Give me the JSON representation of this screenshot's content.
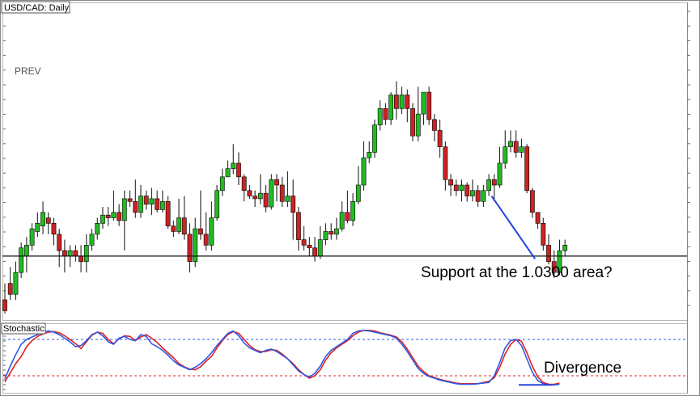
{
  "window": {
    "symbol_title": "USD/CAD: Daily",
    "prev_label": "PREV",
    "indicator_title": "Stochastic"
  },
  "annotations": {
    "support_text": "Support at the 1.0300 area?",
    "divergence_text": "Divergence"
  },
  "colors": {
    "bull": "#22bb22",
    "bear": "#cc2222",
    "wick": "#111111",
    "trendline": "#2244dd",
    "support_line": "#111111",
    "stoch_main": "#2b57e8",
    "stoch_signal": "#e02020",
    "level_upper": "#2b57e8",
    "level_lower": "#e02020",
    "divergence_line": "#2244dd"
  },
  "chart_data": [
    {
      "type": "candlestick",
      "title": "USD/CAD: Daily",
      "ylim": [
        0,
        100
      ],
      "support_level": 24,
      "trendline": [
        [
          89.5,
          46
        ],
        [
          97.5,
          23
        ]
      ],
      "candles": [
        [
          8,
          4,
          14,
          3
        ],
        [
          14,
          10,
          20,
          8
        ],
        [
          10,
          18,
          22,
          8
        ],
        [
          18,
          27,
          29,
          16
        ],
        [
          24,
          28,
          31,
          18
        ],
        [
          28,
          34,
          36,
          26
        ],
        [
          33,
          36,
          40,
          31
        ],
        [
          35,
          40,
          44,
          32
        ],
        [
          38,
          36,
          40,
          32
        ],
        [
          36,
          32,
          38,
          28
        ],
        [
          32,
          26,
          34,
          20
        ],
        [
          26,
          24,
          30,
          18
        ],
        [
          24,
          26,
          28,
          20
        ],
        [
          26,
          24,
          28,
          22
        ],
        [
          24,
          22,
          28,
          18
        ],
        [
          22,
          28,
          32,
          18
        ],
        [
          28,
          32,
          34,
          26
        ],
        [
          32,
          36,
          38,
          30
        ],
        [
          36,
          39,
          42,
          34
        ],
        [
          39,
          38,
          42,
          35
        ],
        [
          38,
          40,
          48,
          37
        ],
        [
          40,
          37,
          43,
          35
        ],
        [
          37,
          45,
          48,
          26
        ],
        [
          45,
          44,
          48,
          42
        ],
        [
          44,
          40,
          52,
          38
        ],
        [
          40,
          46,
          50,
          38
        ],
        [
          46,
          43,
          48,
          41
        ],
        [
          43,
          45,
          49,
          39
        ],
        [
          45,
          41,
          48,
          40
        ],
        [
          41,
          44,
          48,
          40
        ],
        [
          44,
          35,
          46,
          34
        ],
        [
          35,
          33,
          37,
          31
        ],
        [
          33,
          38,
          45,
          32
        ],
        [
          38,
          32,
          46,
          30
        ],
        [
          32,
          22,
          36,
          18
        ],
        [
          22,
          34,
          38,
          20
        ],
        [
          34,
          32,
          48,
          30
        ],
        [
          32,
          28,
          40,
          26
        ],
        [
          28,
          38,
          44,
          26
        ],
        [
          38,
          48,
          50,
          37
        ],
        [
          48,
          53,
          56,
          46
        ],
        [
          53,
          56,
          59,
          53
        ],
        [
          56,
          58,
          65,
          54
        ],
        [
          58,
          53,
          62,
          50
        ],
        [
          53,
          48,
          54,
          44
        ],
        [
          48,
          46,
          50,
          45
        ],
        [
          46,
          45,
          48,
          42
        ],
        [
          45,
          47,
          54,
          43
        ],
        [
          47,
          42,
          50,
          40
        ],
        [
          42,
          52,
          54,
          41
        ],
        [
          52,
          50,
          54,
          44
        ],
        [
          50,
          44,
          53,
          42
        ],
        [
          44,
          46,
          55,
          42
        ],
        [
          46,
          40,
          52,
          30
        ],
        [
          40,
          30,
          42,
          26
        ],
        [
          30,
          28,
          35,
          26
        ],
        [
          28,
          27,
          31,
          24
        ],
        [
          27,
          24,
          31,
          22
        ],
        [
          24,
          30,
          35,
          23
        ],
        [
          30,
          33,
          36,
          28
        ],
        [
          33,
          32,
          36,
          30
        ],
        [
          32,
          34,
          38,
          30
        ],
        [
          34,
          40,
          44,
          33
        ],
        [
          40,
          37,
          48,
          36
        ],
        [
          37,
          44,
          47,
          35
        ],
        [
          44,
          50,
          57,
          43
        ],
        [
          50,
          60,
          66,
          48
        ],
        [
          60,
          62,
          66,
          58
        ],
        [
          62,
          72,
          74,
          60
        ],
        [
          72,
          78,
          81,
          70
        ],
        [
          78,
          74,
          80,
          72
        ],
        [
          74,
          83,
          84,
          72
        ],
        [
          83,
          78,
          88,
          74
        ],
        [
          78,
          83,
          86,
          76
        ],
        [
          83,
          78,
          85,
          73
        ],
        [
          78,
          68,
          80,
          66
        ],
        [
          68,
          76,
          86,
          66
        ],
        [
          76,
          84,
          84,
          72
        ],
        [
          84,
          74,
          86,
          72
        ],
        [
          74,
          70,
          76,
          66
        ],
        [
          70,
          64,
          74,
          60
        ],
        [
          64,
          52,
          66,
          48
        ],
        [
          52,
          50,
          54,
          46
        ],
        [
          50,
          48,
          52,
          46
        ],
        [
          48,
          50,
          52,
          44
        ],
        [
          50,
          46,
          51,
          44
        ],
        [
          46,
          48,
          52,
          44
        ],
        [
          48,
          44,
          50,
          42
        ],
        [
          44,
          48,
          50,
          42
        ],
        [
          48,
          52,
          54,
          46
        ],
        [
          52,
          50,
          54,
          44
        ],
        [
          50,
          58,
          64,
          49
        ],
        [
          58,
          64,
          70,
          56
        ],
        [
          64,
          66,
          70,
          62
        ],
        [
          66,
          62,
          70,
          60
        ],
        [
          62,
          64,
          67,
          60
        ],
        [
          64,
          48,
          65,
          47
        ],
        [
          48,
          40,
          49,
          38
        ],
        [
          40,
          36,
          40,
          34
        ],
        [
          36,
          28,
          38,
          26
        ],
        [
          28,
          22,
          32,
          21
        ],
        [
          22,
          18,
          26,
          16
        ],
        [
          18,
          26,
          30,
          17
        ],
        [
          26,
          28,
          30,
          24
        ]
      ]
    },
    {
      "type": "line",
      "title": "Stochastic",
      "ylim": [
        0,
        100
      ],
      "levels": [
        80,
        20
      ],
      "divergence_line": [
        [
          94.5,
          5
        ],
        [
          100.5,
          5
        ]
      ],
      "series": [
        {
          "key": "main",
          "values": [
            15,
            36,
            55,
            72,
            80,
            84,
            88,
            92,
            94,
            92,
            88,
            82,
            76,
            68,
            70,
            78,
            88,
            92,
            86,
            76,
            72,
            82,
            85,
            80,
            78,
            88,
            85,
            73,
            68,
            62,
            54,
            45,
            38,
            34,
            30,
            34,
            40,
            48,
            58,
            70,
            80,
            90,
            94,
            86,
            74,
            66,
            62,
            58,
            62,
            64,
            60,
            54,
            48,
            38,
            28,
            22,
            18,
            24,
            36,
            52,
            62,
            68,
            74,
            80,
            90,
            94,
            95,
            94,
            92,
            90,
            88,
            86,
            82,
            72,
            60,
            46,
            32,
            24,
            19,
            16,
            13,
            11,
            9,
            7,
            6,
            6,
            6,
            7,
            8,
            9,
            20,
            42,
            66,
            78,
            80,
            70,
            48,
            26,
            12,
            7,
            5,
            5,
            6
          ]
        },
        {
          "key": "signal",
          "values": [
            10,
            25,
            40,
            52,
            68,
            78,
            85,
            89,
            92,
            93,
            91,
            86,
            80,
            73,
            65,
            76,
            87,
            92,
            90,
            80,
            73,
            81,
            86,
            85,
            78,
            84,
            88,
            82,
            75,
            66,
            58,
            50,
            40,
            35,
            31,
            30,
            35,
            44,
            52,
            66,
            78,
            88,
            93,
            90,
            80,
            70,
            63,
            60,
            60,
            63,
            62,
            56,
            48,
            40,
            30,
            22,
            16,
            20,
            30,
            46,
            58,
            66,
            72,
            78,
            86,
            92,
            95,
            95,
            94,
            91,
            89,
            87,
            84,
            76,
            64,
            50,
            36,
            27,
            20,
            17,
            14,
            12,
            10,
            8,
            7,
            7,
            7,
            7,
            9,
            11,
            17,
            34,
            56,
            72,
            80,
            77,
            58,
            36,
            18,
            9,
            6,
            6,
            8
          ]
        }
      ]
    }
  ]
}
